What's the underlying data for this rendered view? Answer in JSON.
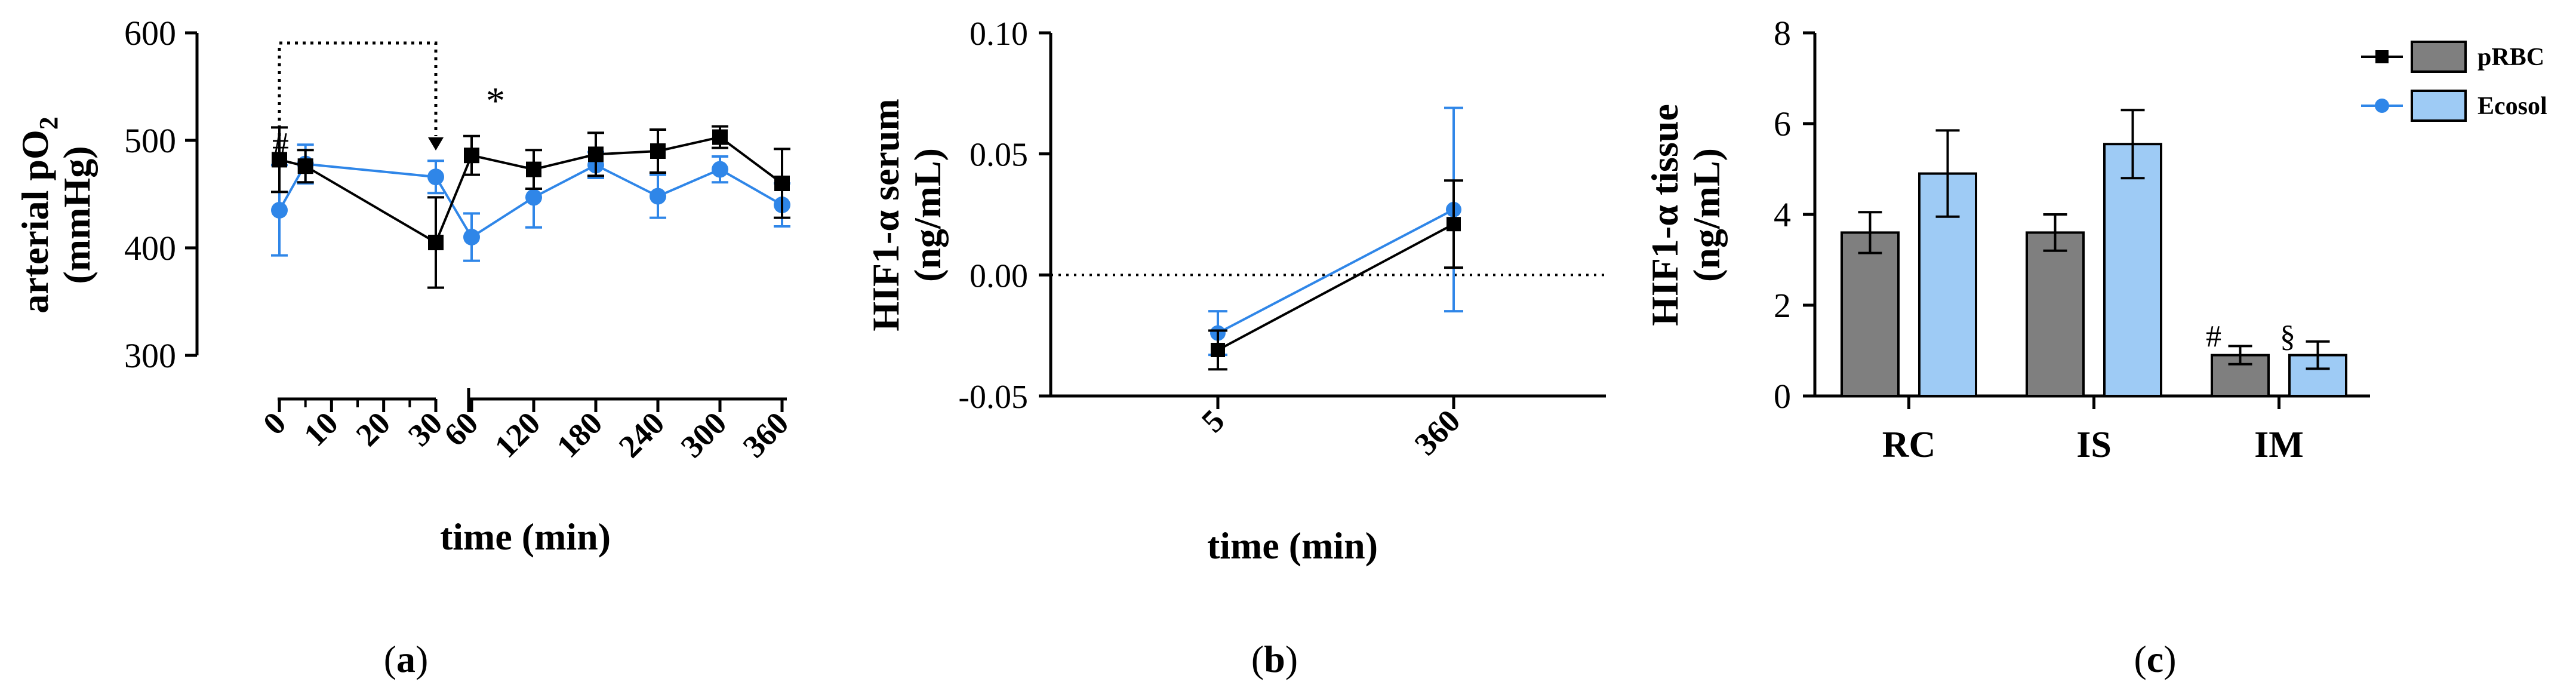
{
  "colors": {
    "prbc": "#000000",
    "ecosol": "#2f86e8",
    "bar_prbc": "#7f7f7f",
    "bar_ecosol": "#9ecbf5"
  },
  "legend": {
    "prbc": "pRBC",
    "ecosol": "Ecosol"
  },
  "chart_data": [
    {
      "panel": "(a)",
      "type": "line",
      "ylabel_line1": "arterial pO",
      "ylabel_sub": "2",
      "ylabel_line2": "(mmHg)",
      "xlabel": "time (min)",
      "ylim": [
        300,
        600
      ],
      "yticks": [
        "300",
        "400",
        "500",
        "600"
      ],
      "x_axis_break": "after 30",
      "xticks": [
        "0",
        "10",
        "20",
        "30",
        "60",
        "120",
        "180",
        "240",
        "300",
        "360"
      ],
      "x": [
        0,
        5,
        30,
        60,
        120,
        180,
        240,
        300,
        360
      ],
      "series": [
        {
          "name": "pRBC",
          "values": [
            482,
            476,
            405,
            486,
            473,
            487,
            490,
            503,
            460
          ],
          "err": [
            30,
            15,
            42,
            18,
            18,
            20,
            20,
            10,
            32
          ]
        },
        {
          "name": "Ecosol",
          "values": [
            435,
            478,
            466,
            410,
            447,
            477,
            448,
            473,
            440
          ],
          "err": [
            42,
            18,
            15,
            22,
            28,
            12,
            20,
            12,
            20
          ]
        }
      ],
      "annotations": [
        "#",
        "*"
      ]
    },
    {
      "panel": "(b)",
      "type": "line",
      "ylabel_line1": "HIF1-α serum",
      "ylabel_line2": "(ng/mL)",
      "xlabel": "time (min)",
      "ylim": [
        -0.05,
        0.1
      ],
      "yticks": [
        "-0.05",
        "0.00",
        "0.05",
        "0.10"
      ],
      "xticks": [
        "5",
        "360"
      ],
      "x": [
        5,
        360
      ],
      "reference_line_y": 0,
      "series": [
        {
          "name": "pRBC",
          "values": [
            -0.031,
            0.021
          ],
          "err": [
            0.008,
            0.018
          ]
        },
        {
          "name": "Ecosol",
          "values": [
            -0.024,
            0.027
          ],
          "err": [
            0.009,
            0.042
          ]
        }
      ]
    },
    {
      "panel": "(c)",
      "type": "bar",
      "ylabel_line1": "HIF1-α tissue",
      "ylabel_line2": "(ng/mL)",
      "ylim": [
        0,
        8
      ],
      "yticks": [
        "0",
        "2",
        "4",
        "6",
        "8"
      ],
      "categories": [
        "RC",
        "IS",
        "IM"
      ],
      "series": [
        {
          "name": "pRBC",
          "values": [
            3.6,
            3.6,
            0.9
          ],
          "err": [
            0.45,
            0.4,
            0.2
          ]
        },
        {
          "name": "Ecosol",
          "values": [
            4.9,
            5.55,
            0.9
          ],
          "err": [
            0.95,
            0.75,
            0.3
          ]
        }
      ],
      "annotations": [
        "#",
        "§"
      ]
    }
  ]
}
